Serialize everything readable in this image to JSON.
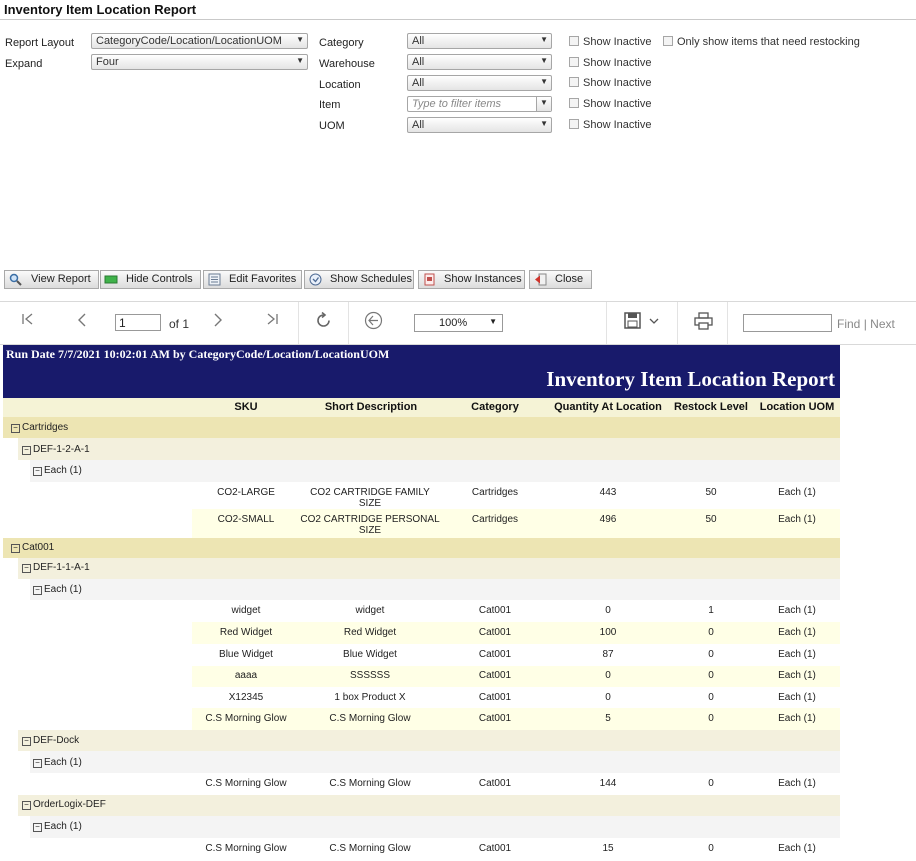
{
  "page": {
    "title": "Inventory Item Location Report"
  },
  "controls": {
    "report_layout_label": "Report Layout",
    "report_layout_value": "CategoryCode/Location/LocationUOM",
    "expand_label": "Expand",
    "expand_value": "Four",
    "category_label": "Category",
    "category_value": "All",
    "warehouse_label": "Warehouse",
    "warehouse_value": "All",
    "location_label": "Location",
    "location_value": "All",
    "item_label": "Item",
    "item_placeholder": "Type to filter items",
    "uom_label": "UOM",
    "uom_value": "All",
    "show_inactive_label": "Show Inactive",
    "restock_only_label": "Only show items that need restocking"
  },
  "toolbar": {
    "view_report": "View Report",
    "hide_controls": "Hide Controls",
    "edit_favorites": "Edit Favorites",
    "show_schedules": "Show Schedules",
    "show_instances": "Show Instances",
    "close": "Close"
  },
  "viewer": {
    "page_current": "1",
    "page_of": "of 1",
    "zoom": "100%",
    "find": "Find",
    "find_sep": "|",
    "next": "Next"
  },
  "report": {
    "run_date": "Run Date 7/7/2021 10:02:01 AM by CategoryCode/Location/LocationUOM",
    "title": "Inventory Item Location Report",
    "headers": {
      "sku": "SKU",
      "desc": "Short Description",
      "category": "Category",
      "qty": "Quantity At Location",
      "restock": "Restock Level",
      "uom": "Location UOM"
    },
    "groups": [
      {
        "label": "Cartridges"
      },
      {
        "label": "Cat001"
      }
    ],
    "locations": [
      {
        "label": "DEF-1-2-A-1"
      },
      {
        "label": "DEF-1-1-A-1"
      },
      {
        "label": "DEF-Dock"
      },
      {
        "label": "OrderLogix-DEF"
      }
    ],
    "uoms": [
      {
        "label": "Each (1)"
      },
      {
        "label": "Each (1)"
      },
      {
        "label": "Each (1)"
      },
      {
        "label": "Each (1)"
      }
    ],
    "toggle_symbol": "−",
    "rows": [
      {
        "sku": "CO2-LARGE",
        "desc": "CO2 CARTRIDGE FAMILY SIZE",
        "category": "Cartridges",
        "qty": "443",
        "restock": "50",
        "uom": "Each (1)"
      },
      {
        "sku": "CO2-SMALL",
        "desc": "CO2 CARTRIDGE PERSONAL SIZE",
        "category": "Cartridges",
        "qty": "496",
        "restock": "50",
        "uom": "Each (1)"
      },
      {
        "sku": "widget",
        "desc": "widget",
        "category": "Cat001",
        "qty": "0",
        "restock": "1",
        "uom": "Each (1)"
      },
      {
        "sku": "Red Widget",
        "desc": "Red Widget",
        "category": "Cat001",
        "qty": "100",
        "restock": "0",
        "uom": "Each (1)"
      },
      {
        "sku": "Blue Widget",
        "desc": "Blue Widget",
        "category": "Cat001",
        "qty": "87",
        "restock": "0",
        "uom": "Each (1)"
      },
      {
        "sku": "aaaa",
        "desc": "SSSSSS",
        "category": "Cat001",
        "qty": "0",
        "restock": "0",
        "uom": "Each (1)"
      },
      {
        "sku": "X12345",
        "desc": "1 box Product X",
        "category": "Cat001",
        "qty": "0",
        "restock": "0",
        "uom": "Each (1)"
      },
      {
        "sku": "C.S Morning Glow",
        "desc": "C.S Morning Glow",
        "category": "Cat001",
        "qty": "5",
        "restock": "0",
        "uom": "Each (1)"
      },
      {
        "sku": "C.S Morning Glow",
        "desc": "C.S Morning Glow",
        "category": "Cat001",
        "qty": "144",
        "restock": "0",
        "uom": "Each (1)"
      },
      {
        "sku": "C.S Morning Glow",
        "desc": "C.S Morning Glow",
        "category": "Cat001",
        "qty": "15",
        "restock": "0",
        "uom": "Each (1)"
      }
    ]
  }
}
